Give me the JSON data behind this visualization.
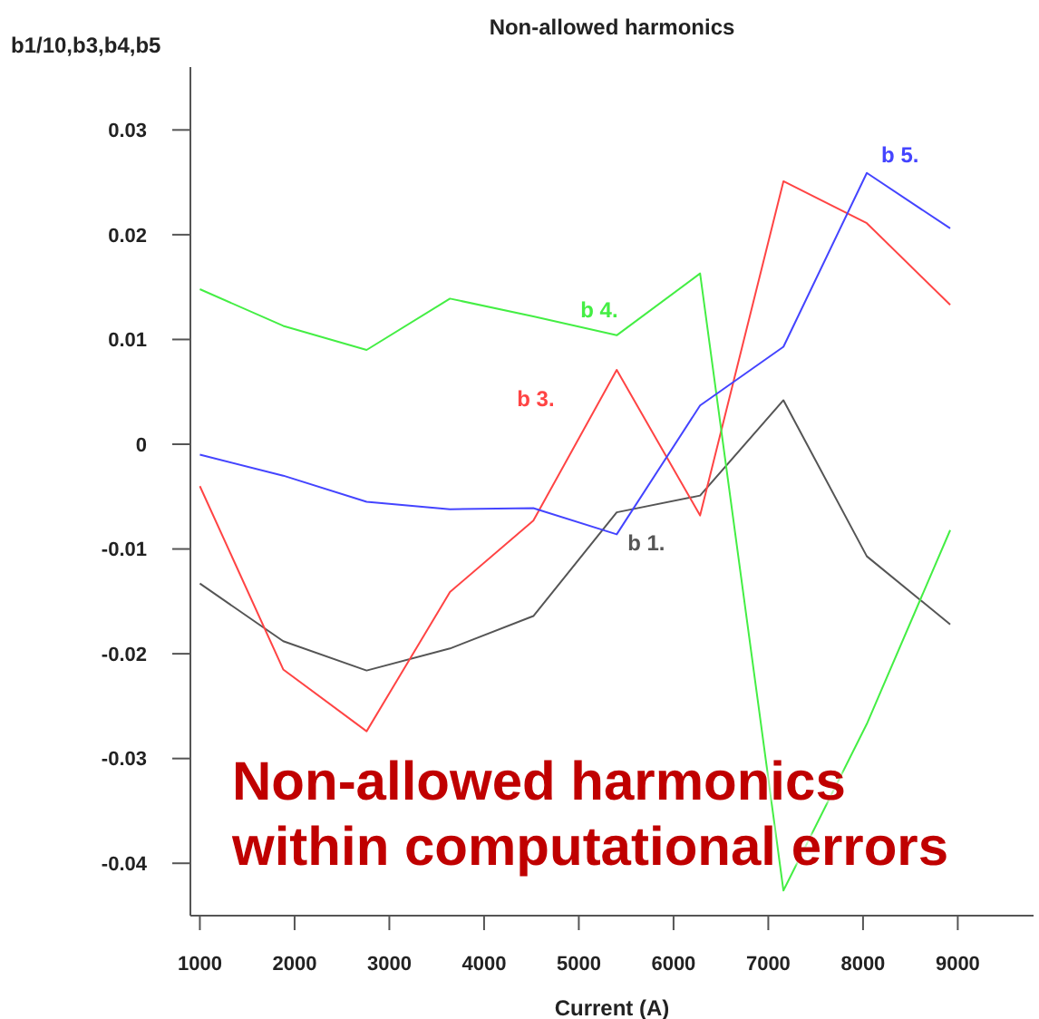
{
  "chart_data": {
    "type": "line",
    "title": "Non-allowed harmonics",
    "xlabel": "Current (A)",
    "ylabel": "b1/10,b3,b4,b5",
    "annotations": [
      "Non-allowed harmonics within computational errors"
    ],
    "x": [
      1000,
      1880,
      2760,
      3640,
      4520,
      5400,
      6280,
      7160,
      8040,
      8920
    ],
    "series": [
      {
        "name": "b 1.",
        "color": "#555555",
        "values": [
          -0.0133,
          -0.0188,
          -0.0216,
          -0.0195,
          -0.0164,
          -0.0065,
          -0.0049,
          0.0042,
          -0.0107,
          -0.0172
        ]
      },
      {
        "name": "b 3.",
        "color": "#ff4444",
        "values": [
          -0.004,
          -0.0215,
          -0.0274,
          -0.0141,
          -0.0073,
          0.0071,
          -0.0068,
          0.0251,
          0.0211,
          0.0133
        ]
      },
      {
        "name": "b 4.",
        "color": "#44ee44",
        "values": [
          0.0148,
          0.0113,
          0.009,
          0.0139,
          0.0122,
          0.0104,
          0.0163,
          -0.0426,
          -0.0267,
          -0.0082
        ]
      },
      {
        "name": "b 5.",
        "color": "#4444ff",
        "values": [
          -0.001,
          -0.003,
          -0.0055,
          -0.0062,
          -0.0061,
          -0.0086,
          0.0037,
          0.0093,
          0.0259,
          0.0206
        ]
      }
    ],
    "xlim": [
      900,
      9800
    ],
    "xticks": [
      1000,
      2000,
      3000,
      4000,
      5000,
      6000,
      7000,
      8000,
      9000
    ],
    "ylim": [
      -0.045,
      0.036
    ],
    "yticks": [
      -0.04,
      -0.03,
      -0.02,
      -0.01,
      0,
      0.01,
      0.02,
      0.03
    ],
    "grid": false,
    "marker": "none",
    "line_style": "solid"
  }
}
